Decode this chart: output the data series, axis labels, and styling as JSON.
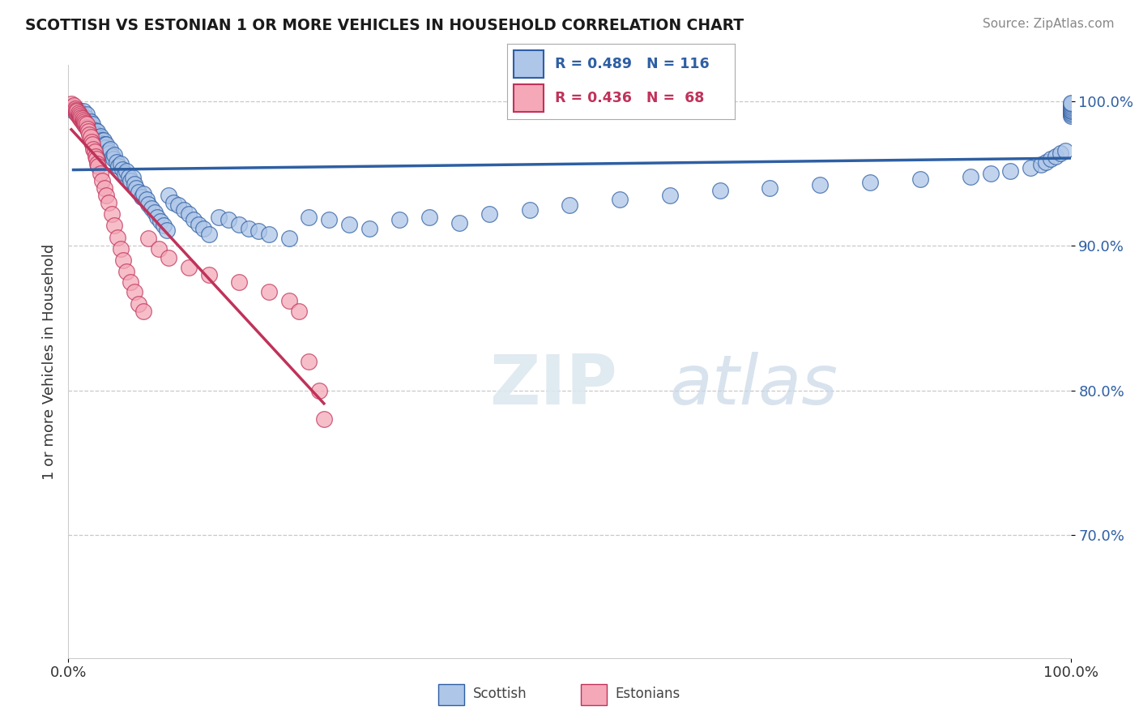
{
  "title": "SCOTTISH VS ESTONIAN 1 OR MORE VEHICLES IN HOUSEHOLD CORRELATION CHART",
  "source": "Source: ZipAtlas.com",
  "ylabel": "1 or more Vehicles in Household",
  "xlim": [
    0.0,
    1.0
  ],
  "ylim": [
    0.615,
    1.025
  ],
  "ytick_labels": [
    "70.0%",
    "80.0%",
    "90.0%",
    "100.0%"
  ],
  "ytick_positions": [
    0.7,
    0.8,
    0.9,
    1.0
  ],
  "legend_r_scottish": "R = 0.489",
  "legend_n_scottish": "N = 116",
  "legend_r_estonian": "R = 0.436",
  "legend_n_estonian": "N =  68",
  "scottish_color": "#aec6e8",
  "estonian_color": "#f4a8b8",
  "scottish_line_color": "#2e5fa3",
  "estonian_line_color": "#c0325a",
  "background_color": "#ffffff",
  "grid_color": "#c8c8c8",
  "scottish_x": [
    0.005,
    0.008,
    0.01,
    0.01,
    0.012,
    0.013,
    0.014,
    0.015,
    0.015,
    0.016,
    0.017,
    0.018,
    0.018,
    0.019,
    0.02,
    0.021,
    0.022,
    0.022,
    0.023,
    0.024,
    0.024,
    0.025,
    0.026,
    0.027,
    0.028,
    0.029,
    0.03,
    0.031,
    0.032,
    0.033,
    0.034,
    0.035,
    0.036,
    0.037,
    0.038,
    0.04,
    0.041,
    0.042,
    0.044,
    0.045,
    0.046,
    0.048,
    0.05,
    0.052,
    0.054,
    0.056,
    0.058,
    0.06,
    0.062,
    0.064,
    0.066,
    0.068,
    0.07,
    0.073,
    0.075,
    0.078,
    0.08,
    0.083,
    0.086,
    0.089,
    0.092,
    0.095,
    0.098,
    0.1,
    0.105,
    0.11,
    0.115,
    0.12,
    0.125,
    0.13,
    0.135,
    0.14,
    0.15,
    0.16,
    0.17,
    0.18,
    0.19,
    0.2,
    0.22,
    0.24,
    0.26,
    0.28,
    0.3,
    0.33,
    0.36,
    0.39,
    0.42,
    0.46,
    0.5,
    0.55,
    0.6,
    0.65,
    0.7,
    0.75,
    0.8,
    0.85,
    0.9,
    0.92,
    0.94,
    0.96,
    0.97,
    0.975,
    0.98,
    0.985,
    0.99,
    0.995,
    1.0,
    1.0,
    1.0,
    1.0,
    1.0,
    1.0,
    1.0,
    1.0,
    1.0,
    1.0
  ],
  "scottish_y": [
    0.993,
    0.995,
    0.991,
    0.994,
    0.99,
    0.992,
    0.988,
    0.989,
    0.993,
    0.987,
    0.985,
    0.988,
    0.991,
    0.984,
    0.983,
    0.985,
    0.982,
    0.986,
    0.98,
    0.981,
    0.984,
    0.979,
    0.978,
    0.98,
    0.977,
    0.979,
    0.975,
    0.974,
    0.976,
    0.973,
    0.971,
    0.973,
    0.97,
    0.968,
    0.97,
    0.966,
    0.964,
    0.967,
    0.962,
    0.96,
    0.963,
    0.958,
    0.955,
    0.957,
    0.953,
    0.95,
    0.952,
    0.948,
    0.945,
    0.947,
    0.943,
    0.94,
    0.937,
    0.934,
    0.936,
    0.932,
    0.929,
    0.926,
    0.923,
    0.92,
    0.917,
    0.914,
    0.911,
    0.935,
    0.93,
    0.928,
    0.925,
    0.922,
    0.918,
    0.915,
    0.912,
    0.908,
    0.92,
    0.918,
    0.915,
    0.912,
    0.91,
    0.908,
    0.905,
    0.92,
    0.918,
    0.915,
    0.912,
    0.918,
    0.92,
    0.916,
    0.922,
    0.925,
    0.928,
    0.932,
    0.935,
    0.938,
    0.94,
    0.942,
    0.944,
    0.946,
    0.948,
    0.95,
    0.952,
    0.954,
    0.956,
    0.958,
    0.96,
    0.962,
    0.964,
    0.966,
    0.99,
    0.991,
    0.992,
    0.993,
    0.994,
    0.995,
    0.996,
    0.997,
    0.998,
    0.999
  ],
  "estonian_x": [
    0.003,
    0.004,
    0.005,
    0.005,
    0.006,
    0.007,
    0.007,
    0.008,
    0.008,
    0.009,
    0.009,
    0.01,
    0.01,
    0.011,
    0.011,
    0.012,
    0.012,
    0.013,
    0.013,
    0.014,
    0.014,
    0.015,
    0.015,
    0.016,
    0.016,
    0.017,
    0.017,
    0.018,
    0.018,
    0.019,
    0.02,
    0.021,
    0.022,
    0.023,
    0.024,
    0.025,
    0.026,
    0.027,
    0.028,
    0.029,
    0.03,
    0.032,
    0.034,
    0.036,
    0.038,
    0.04,
    0.043,
    0.046,
    0.049,
    0.052,
    0.055,
    0.058,
    0.062,
    0.066,
    0.07,
    0.075,
    0.08,
    0.09,
    0.1,
    0.12,
    0.14,
    0.17,
    0.2,
    0.22,
    0.23,
    0.24,
    0.25,
    0.255
  ],
  "estonian_y": [
    0.998,
    0.996,
    0.995,
    0.997,
    0.994,
    0.993,
    0.995,
    0.992,
    0.994,
    0.991,
    0.993,
    0.99,
    0.992,
    0.989,
    0.991,
    0.988,
    0.99,
    0.987,
    0.989,
    0.986,
    0.988,
    0.985,
    0.987,
    0.984,
    0.986,
    0.983,
    0.985,
    0.982,
    0.984,
    0.981,
    0.979,
    0.977,
    0.975,
    0.972,
    0.97,
    0.967,
    0.965,
    0.962,
    0.96,
    0.957,
    0.955,
    0.95,
    0.945,
    0.94,
    0.935,
    0.93,
    0.922,
    0.914,
    0.906,
    0.898,
    0.89,
    0.882,
    0.875,
    0.868,
    0.86,
    0.855,
    0.905,
    0.898,
    0.892,
    0.885,
    0.88,
    0.875,
    0.868,
    0.862,
    0.855,
    0.82,
    0.8,
    0.78
  ]
}
